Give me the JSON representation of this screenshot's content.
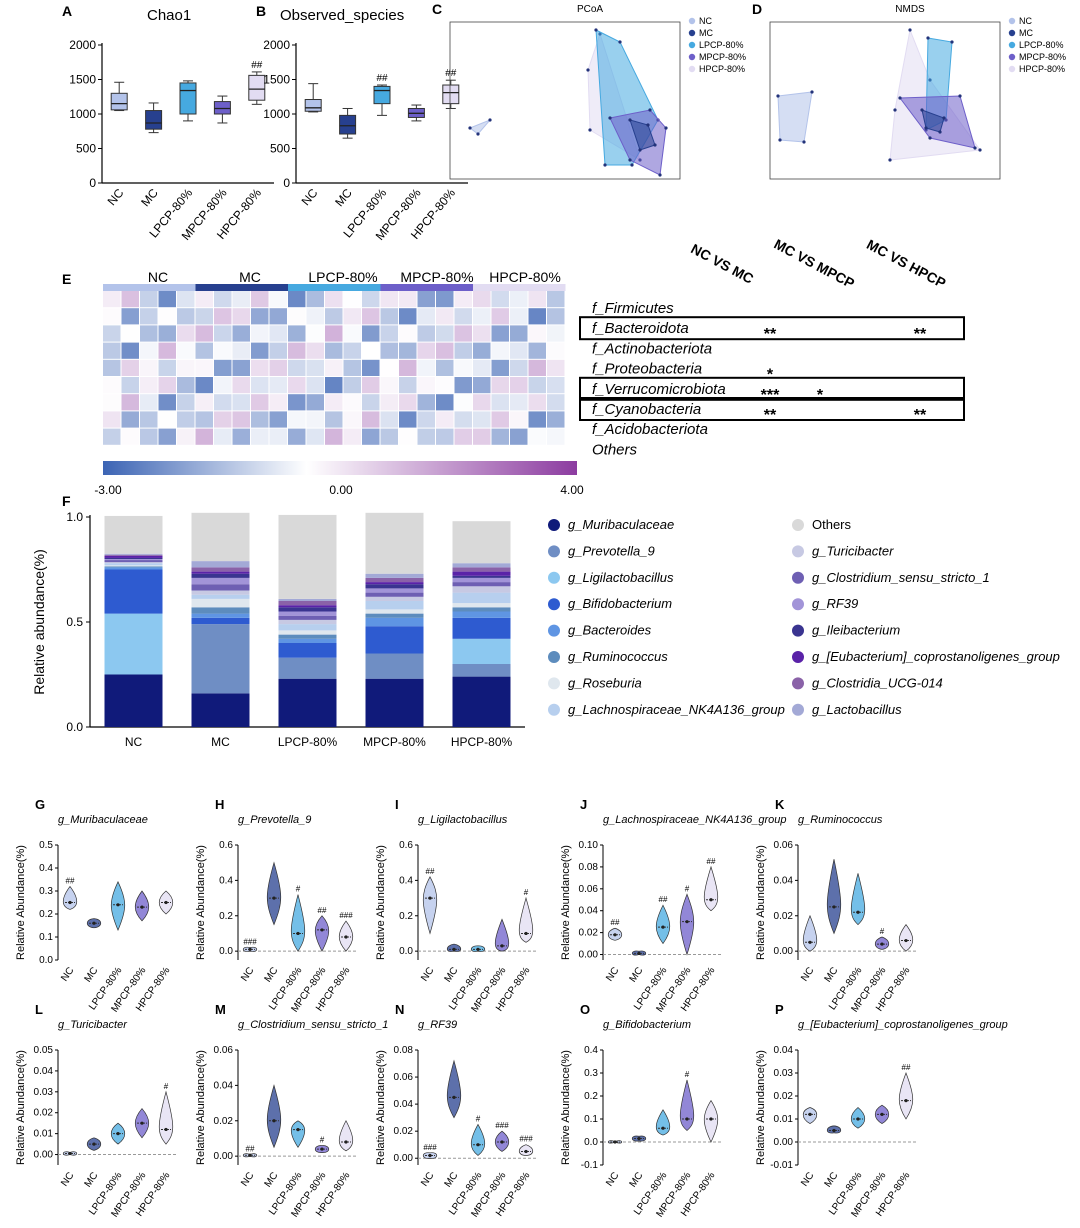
{
  "groups": [
    "NC",
    "MC",
    "LPCP-80%",
    "MPCP-80%",
    "HPCP-80%"
  ],
  "group_colors": [
    "#b3c3ea",
    "#27408f",
    "#46a9e0",
    "#6d5fc9",
    "#e2dcf2"
  ],
  "panels": {
    "A": {
      "letter": "A",
      "title": "Chao1",
      "yticks": [
        "0",
        "500",
        "1000",
        "1500",
        "2000"
      ],
      "ylim": [
        0,
        2000
      ],
      "boxes": [
        {
          "min": 1050,
          "q1": 1060,
          "med": 1150,
          "q3": 1300,
          "max": 1460,
          "sig": ""
        },
        {
          "min": 730,
          "q1": 780,
          "med": 870,
          "q3": 1050,
          "max": 1160,
          "sig": ""
        },
        {
          "min": 900,
          "q1": 1000,
          "med": 1340,
          "q3": 1450,
          "max": 1480,
          "sig": ""
        },
        {
          "min": 870,
          "q1": 1000,
          "med": 1080,
          "q3": 1180,
          "max": 1260,
          "sig": ""
        },
        {
          "min": 1140,
          "q1": 1200,
          "med": 1360,
          "q3": 1560,
          "max": 1610,
          "sig": "##"
        }
      ]
    },
    "B": {
      "letter": "B",
      "title": "Observed_species",
      "yticks": [
        "0",
        "500",
        "1000",
        "1500",
        "2000"
      ],
      "ylim": [
        0,
        2000
      ],
      "boxes": [
        {
          "min": 1030,
          "q1": 1040,
          "med": 1090,
          "q3": 1210,
          "max": 1440,
          "sig": ""
        },
        {
          "min": 650,
          "q1": 710,
          "med": 830,
          "q3": 980,
          "max": 1080,
          "sig": ""
        },
        {
          "min": 980,
          "q1": 1150,
          "med": 1340,
          "q3": 1400,
          "max": 1420,
          "sig": "##"
        },
        {
          "min": 900,
          "q1": 950,
          "med": 1010,
          "q3": 1080,
          "max": 1130,
          "sig": ""
        },
        {
          "min": 1080,
          "q1": 1150,
          "med": 1310,
          "q3": 1420,
          "max": 1490,
          "sig": "##"
        }
      ]
    },
    "C": {
      "letter": "C",
      "title": "PCoA"
    },
    "D": {
      "letter": "D",
      "title": "NMDS"
    },
    "E": {
      "letter": "E",
      "comparisons": [
        "NC VS MC",
        "MC VS MPCP",
        "MC VS HPCP"
      ],
      "taxa": [
        "f_Firmicutes",
        "f_Bacteroidota",
        "f_Actinobacteriota",
        "f_Proteobacteria",
        "f_Verrucomicrobiota",
        "f_Cyanobacteria",
        "f_Acidobacteriota",
        "Others"
      ],
      "stars": [
        [
          "",
          "",
          ""
        ],
        [
          "**",
          "",
          "**"
        ],
        [
          "",
          "",
          ""
        ],
        [
          "*",
          "",
          ""
        ],
        [
          "***",
          "*",
          ""
        ],
        [
          "**",
          "",
          "**"
        ],
        [
          "",
          "",
          ""
        ],
        [
          "",
          "",
          ""
        ]
      ],
      "boxed_rows": [
        1,
        4,
        5
      ],
      "scale": [
        "-3.00",
        "0.00",
        "4.00"
      ]
    },
    "F": {
      "letter": "F",
      "ylabel": "Relative abundance(%)",
      "yticks": [
        "0.0",
        "0.5",
        "1.0"
      ]
    }
  },
  "chart_data": {
    "type": "bar",
    "categories": [
      "NC",
      "MC",
      "LPCP-80%",
      "MPCP-80%",
      "HPCP-80%"
    ],
    "ylim": [
      0,
      1.0
    ],
    "series": [
      {
        "name": "g_Muribaculaceae",
        "color": "#101a7a",
        "values": [
          0.25,
          0.16,
          0.23,
          0.23,
          0.24
        ]
      },
      {
        "name": "g_Prevotella_9",
        "color": "#6f8ec4",
        "values": [
          0,
          0.33,
          0.1,
          0.12,
          0.06
        ]
      },
      {
        "name": "g_Ligilactobacillus",
        "color": "#8cc8f0",
        "values": [
          0.29,
          0,
          0,
          0,
          0.12
        ]
      },
      {
        "name": "g_Bifidobacterium",
        "color": "#2e5bd0",
        "values": [
          0.21,
          0.03,
          0.07,
          0.13,
          0.1
        ]
      },
      {
        "name": "g_Bacteroides",
        "color": "#5f95e3",
        "values": [
          0.01,
          0.02,
          0.02,
          0.04,
          0.03
        ]
      },
      {
        "name": "g_Ruminococcus",
        "color": "#5d8cbd",
        "values": [
          0.005,
          0.03,
          0.02,
          0.02,
          0.02
        ]
      },
      {
        "name": "g_Roseburia",
        "color": "#dfe7ee",
        "values": [
          0.005,
          0.04,
          0.02,
          0.02,
          0.02
        ]
      },
      {
        "name": "g_Lachnospiraceae_NK4A136_group",
        "color": "#b7cfee",
        "values": [
          0.01,
          0.02,
          0.03,
          0.04,
          0.05
        ]
      },
      {
        "name": "g_Turicibacter",
        "color": "#c7c9e3",
        "values": [
          0.005,
          0.02,
          0.02,
          0.02,
          0.03
        ]
      },
      {
        "name": "g_Clostridium_sensu_stricto_1",
        "color": "#6e5fb3",
        "values": [
          0.01,
          0.03,
          0.02,
          0.02,
          0.02
        ]
      },
      {
        "name": "g_RF39",
        "color": "#a294d8",
        "values": [
          0.005,
          0.03,
          0.02,
          0.02,
          0.02
        ]
      },
      {
        "name": "g_Ileibacterium",
        "color": "#3a3490",
        "values": [
          0.005,
          0.02,
          0.02,
          0.02,
          0.01
        ]
      },
      {
        "name": "g_[Eubacterium]_coprostanoligenes_group",
        "color": "#5a22a8",
        "values": [
          0.01,
          0.01,
          0.01,
          0.01,
          0.02
        ]
      },
      {
        "name": "g_Clostridia_UCG-014",
        "color": "#8a62a8",
        "values": [
          0.005,
          0.02,
          0.02,
          0.02,
          0.02
        ]
      },
      {
        "name": "g_Lactobacillus",
        "color": "#a3a9d6",
        "values": [
          0.005,
          0.03,
          0.01,
          0.02,
          0.02
        ]
      },
      {
        "name": "Others",
        "color": "#d9d9d9",
        "values": [
          0.18,
          0.23,
          0.4,
          0.29,
          0.2
        ]
      }
    ]
  },
  "violins": [
    {
      "letter": "G",
      "title": "g_Muribaculaceae",
      "ylabel": "Relative Abundance(%)",
      "yticks": [
        "0.0",
        "0.1",
        "0.2",
        "0.3",
        "0.4",
        "0.5"
      ],
      "ylim": [
        0,
        0.5
      ],
      "groups": [
        {
          "mid": 0.25,
          "lo": 0.22,
          "hi": 0.32,
          "sig": "##"
        },
        {
          "mid": 0.16,
          "lo": 0.14,
          "hi": 0.18,
          "sig": ""
        },
        {
          "mid": 0.24,
          "lo": 0.13,
          "hi": 0.34,
          "sig": ""
        },
        {
          "mid": 0.23,
          "lo": 0.17,
          "hi": 0.3,
          "sig": ""
        },
        {
          "mid": 0.25,
          "lo": 0.2,
          "hi": 0.3,
          "sig": ""
        }
      ]
    },
    {
      "letter": "H",
      "title": "g_Prevotella_9",
      "ylabel": "Relative Abundance(%)",
      "yticks": [
        "0.0",
        "0.2",
        "0.4",
        "0.6"
      ],
      "ylim": [
        -0.05,
        0.6
      ],
      "groups": [
        {
          "mid": 0.01,
          "lo": 0,
          "hi": 0.02,
          "sig": "###"
        },
        {
          "mid": 0.3,
          "lo": 0.15,
          "hi": 0.5,
          "sig": ""
        },
        {
          "mid": 0.1,
          "lo": 0,
          "hi": 0.32,
          "sig": "#"
        },
        {
          "mid": 0.12,
          "lo": 0,
          "hi": 0.2,
          "sig": "##"
        },
        {
          "mid": 0.08,
          "lo": 0,
          "hi": 0.17,
          "sig": "###"
        }
      ]
    },
    {
      "letter": "I",
      "title": "g_Ligilactobacillus",
      "ylabel": "Relative Abundance(%)",
      "yticks": [
        "0.0",
        "0.2",
        "0.4",
        "0.6"
      ],
      "ylim": [
        -0.05,
        0.6
      ],
      "groups": [
        {
          "mid": 0.3,
          "lo": 0.1,
          "hi": 0.42,
          "sig": "##"
        },
        {
          "mid": 0.01,
          "lo": 0,
          "hi": 0.04,
          "sig": ""
        },
        {
          "mid": 0.01,
          "lo": 0,
          "hi": 0.03,
          "sig": ""
        },
        {
          "mid": 0.03,
          "lo": 0,
          "hi": 0.18,
          "sig": ""
        },
        {
          "mid": 0.1,
          "lo": 0.05,
          "hi": 0.3,
          "sig": "#"
        }
      ]
    },
    {
      "letter": "J",
      "title": "g_Lachnospiraceae_NK4A136_group",
      "ylabel": "Relative Abundance(%)",
      "yticks": [
        "0.00",
        "0.02",
        "0.04",
        "0.06",
        "0.08",
        "0.10"
      ],
      "ylim": [
        -0.005,
        0.1
      ],
      "groups": [
        {
          "mid": 0.018,
          "lo": 0.013,
          "hi": 0.024,
          "sig": "##"
        },
        {
          "mid": 0.001,
          "lo": 0,
          "hi": 0.003,
          "sig": ""
        },
        {
          "mid": 0.025,
          "lo": 0.01,
          "hi": 0.045,
          "sig": "##"
        },
        {
          "mid": 0.03,
          "lo": 0,
          "hi": 0.055,
          "sig": "#"
        },
        {
          "mid": 0.05,
          "lo": 0.04,
          "hi": 0.08,
          "sig": "##"
        }
      ]
    },
    {
      "letter": "K",
      "title": "g_Ruminococcus",
      "ylabel": "Relative Abundance(%)",
      "yticks": [
        "0.00",
        "0.02",
        "0.04",
        "0.06"
      ],
      "ylim": [
        -0.005,
        0.06
      ],
      "groups": [
        {
          "mid": 0.005,
          "lo": 0,
          "hi": 0.02,
          "sig": ""
        },
        {
          "mid": 0.025,
          "lo": 0.01,
          "hi": 0.052,
          "sig": ""
        },
        {
          "mid": 0.022,
          "lo": 0.015,
          "hi": 0.044,
          "sig": ""
        },
        {
          "mid": 0.004,
          "lo": 0.001,
          "hi": 0.008,
          "sig": "#"
        },
        {
          "mid": 0.006,
          "lo": 0,
          "hi": 0.015,
          "sig": ""
        }
      ]
    },
    {
      "letter": "L",
      "title": "g_Turicibacter",
      "ylabel": "Relative Abundance(%)",
      "yticks": [
        "0.00",
        "0.01",
        "0.02",
        "0.03",
        "0.04",
        "0.05"
      ],
      "ylim": [
        -0.005,
        0.05
      ],
      "groups": [
        {
          "mid": 0.0005,
          "lo": 0,
          "hi": 0.001,
          "sig": ""
        },
        {
          "mid": 0.005,
          "lo": 0.002,
          "hi": 0.008,
          "sig": ""
        },
        {
          "mid": 0.01,
          "lo": 0.005,
          "hi": 0.015,
          "sig": ""
        },
        {
          "mid": 0.015,
          "lo": 0.008,
          "hi": 0.022,
          "sig": ""
        },
        {
          "mid": 0.012,
          "lo": 0.005,
          "hi": 0.03,
          "sig": "#"
        }
      ]
    },
    {
      "letter": "M",
      "title": "g_Clostridium_sensu_stricto_1",
      "ylabel": "Relative Abundance(%)",
      "yticks": [
        "0.00",
        "0.02",
        "0.04",
        "0.06"
      ],
      "ylim": [
        -0.005,
        0.06
      ],
      "groups": [
        {
          "mid": 0.0005,
          "lo": 0,
          "hi": 0.001,
          "sig": "##"
        },
        {
          "mid": 0.02,
          "lo": 0.005,
          "hi": 0.04,
          "sig": ""
        },
        {
          "mid": 0.015,
          "lo": 0.005,
          "hi": 0.02,
          "sig": ""
        },
        {
          "mid": 0.004,
          "lo": 0.002,
          "hi": 0.006,
          "sig": "#"
        },
        {
          "mid": 0.008,
          "lo": 0.003,
          "hi": 0.02,
          "sig": ""
        }
      ]
    },
    {
      "letter": "N",
      "title": "g_RF39",
      "ylabel": "Relative Abundance(%)",
      "yticks": [
        "0.00",
        "0.02",
        "0.04",
        "0.06",
        "0.08"
      ],
      "ylim": [
        -0.005,
        0.08
      ],
      "groups": [
        {
          "mid": 0.002,
          "lo": 0,
          "hi": 0.004,
          "sig": "###"
        },
        {
          "mid": 0.045,
          "lo": 0.03,
          "hi": 0.072,
          "sig": ""
        },
        {
          "mid": 0.01,
          "lo": 0.002,
          "hi": 0.025,
          "sig": "#"
        },
        {
          "mid": 0.012,
          "lo": 0.005,
          "hi": 0.02,
          "sig": "###"
        },
        {
          "mid": 0.005,
          "lo": 0.002,
          "hi": 0.01,
          "sig": "###"
        }
      ]
    },
    {
      "letter": "O",
      "title": "g_Bifidobacterium",
      "ylabel": "Relative Abundance(%)",
      "yticks": [
        "-0.1",
        "0.0",
        "0.1",
        "0.2",
        "0.3",
        "0.4"
      ],
      "ylim": [
        -0.1,
        0.4
      ],
      "groups": [
        {
          "mid": 0,
          "lo": 0,
          "hi": 0.002,
          "sig": ""
        },
        {
          "mid": 0.015,
          "lo": 0.005,
          "hi": 0.025,
          "sig": ""
        },
        {
          "mid": 0.06,
          "lo": 0.03,
          "hi": 0.14,
          "sig": ""
        },
        {
          "mid": 0.1,
          "lo": 0.05,
          "hi": 0.27,
          "sig": "#"
        },
        {
          "mid": 0.1,
          "lo": 0,
          "hi": 0.18,
          "sig": ""
        }
      ]
    },
    {
      "letter": "P",
      "title": "g_[Eubacterium]_coprostanoligenes_group",
      "ylabel": "Relative Abundance(%)",
      "yticks": [
        "-0.01",
        "0.00",
        "0.01",
        "0.02",
        "0.03",
        "0.04"
      ],
      "ylim": [
        -0.01,
        0.04
      ],
      "groups": [
        {
          "mid": 0.012,
          "lo": 0.008,
          "hi": 0.015,
          "sig": ""
        },
        {
          "mid": 0.005,
          "lo": 0.004,
          "hi": 0.007,
          "sig": ""
        },
        {
          "mid": 0.01,
          "lo": 0.006,
          "hi": 0.015,
          "sig": ""
        },
        {
          "mid": 0.012,
          "lo": 0.008,
          "hi": 0.016,
          "sig": ""
        },
        {
          "mid": 0.018,
          "lo": 0.01,
          "hi": 0.03,
          "sig": "##"
        }
      ]
    }
  ]
}
